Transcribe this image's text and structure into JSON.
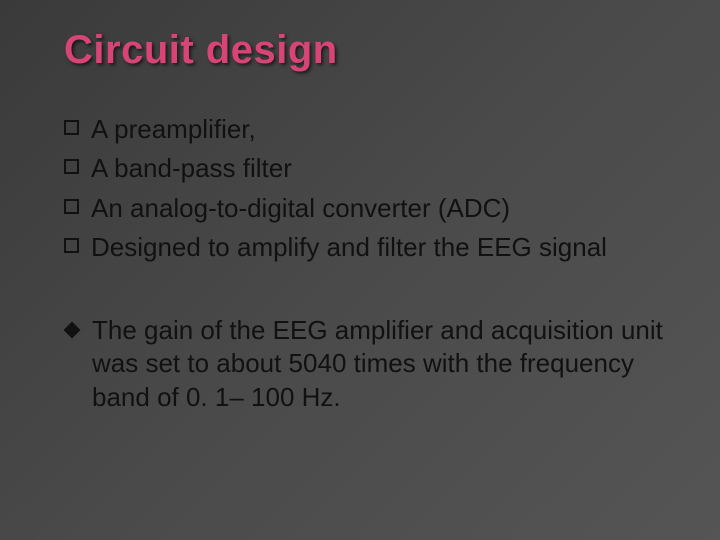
{
  "slide": {
    "title": "Circuit design",
    "title_color": "#d84476",
    "background_gradient": [
      "#3a3a3a",
      "#4a4a4a",
      "#555555"
    ],
    "text_color": "#111111",
    "title_fontsize": 40,
    "body_fontsize": 26,
    "bullets_square": [
      "A preamplifier,",
      "A band-pass filter",
      "An analog-to-digital converter (ADC)",
      "Designed to amplify and filter the EEG signal"
    ],
    "bullets_diamond": [
      "The gain of the EEG amplifier and acquisition unit was set to about 5040 times with the frequency band of 0. 1– 100 Hz."
    ]
  }
}
